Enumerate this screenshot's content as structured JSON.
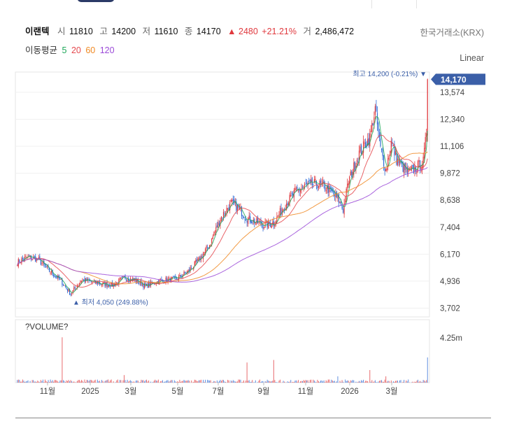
{
  "header": {
    "stock_name": "이랜텍",
    "open_label": "시",
    "open_value": "11810",
    "high_label": "고",
    "high_value": "14200",
    "low_label": "저",
    "low_value": "11610",
    "close_label": "종",
    "close_value": "14170",
    "change_value": "▲ 2480",
    "change_pct": "+21.21%",
    "volume_label": "거",
    "volume_value": "2,486,472",
    "exchange": "한국거래소(KRX)"
  },
  "ma_legend": {
    "label": "이동평균",
    "ma5": "5",
    "ma20": "20",
    "ma60": "60",
    "ma120": "120"
  },
  "scale_label": "Linear",
  "colors": {
    "up": "#e0393e",
    "down": "#2f6bd6",
    "ma5": "#1fa85a",
    "ma20": "#e5484d",
    "ma60": "#f08a24",
    "ma120": "#9b4ad8",
    "badge": "#3b5fa8"
  },
  "chart_data": {
    "type": "candlestick",
    "title": "",
    "y_ticks": [
      "13,574",
      "12,340",
      "11,106",
      "9,872",
      "8,638",
      "7,404",
      "6,170",
      "4,936",
      "3,702"
    ],
    "y_tick_values": [
      13574,
      12340,
      11106,
      9872,
      8638,
      7404,
      6170,
      4936,
      3702
    ],
    "ylim": [
      3300,
      14500
    ],
    "x_ticks": [
      "11월",
      "2025",
      "3월",
      "5월",
      "7월",
      "9월",
      "11월",
      "2026",
      "3월"
    ],
    "last_price_label": "14,170",
    "last_price": 14170,
    "max_annotation": "최고 14,200 (-0.21%)",
    "min_annotation": "최저 4,050 (249.88%)",
    "volume_title": "?VOLUME?",
    "volume_tick": "4.25m",
    "close_anchors": [
      [
        0,
        5800
      ],
      [
        10,
        6050
      ],
      [
        20,
        5900
      ],
      [
        30,
        5400
      ],
      [
        40,
        5000
      ],
      [
        50,
        4350
      ],
      [
        60,
        5000
      ],
      [
        70,
        4900
      ],
      [
        80,
        4800
      ],
      [
        90,
        4750
      ],
      [
        100,
        5100
      ],
      [
        110,
        5000
      ],
      [
        120,
        4700
      ],
      [
        130,
        4900
      ],
      [
        140,
        5000
      ],
      [
        150,
        5050
      ],
      [
        160,
        5400
      ],
      [
        170,
        5900
      ],
      [
        180,
        6600
      ],
      [
        190,
        7800
      ],
      [
        200,
        8500
      ],
      [
        205,
        8350
      ],
      [
        210,
        8100
      ],
      [
        215,
        7800
      ],
      [
        220,
        7700
      ],
      [
        230,
        7500
      ],
      [
        240,
        7600
      ],
      [
        250,
        8400
      ],
      [
        260,
        9000
      ],
      [
        270,
        9300
      ],
      [
        280,
        9400
      ],
      [
        290,
        9200
      ],
      [
        300,
        8700
      ],
      [
        305,
        8200
      ],
      [
        310,
        9500
      ],
      [
        320,
        10800
      ],
      [
        330,
        11500
      ],
      [
        335,
        12800
      ],
      [
        340,
        11000
      ],
      [
        345,
        10000
      ],
      [
        350,
        11300
      ],
      [
        355,
        10500
      ],
      [
        360,
        10200
      ],
      [
        365,
        9900
      ],
      [
        370,
        10000
      ],
      [
        380,
        10400
      ],
      [
        383,
        11700
      ],
      [
        384,
        14170
      ]
    ]
  }
}
